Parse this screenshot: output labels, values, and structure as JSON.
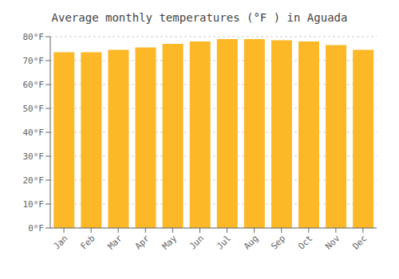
{
  "chart_data": {
    "type": "bar",
    "title": "Average monthly temperatures (°F ) in Aguada",
    "categories": [
      "Jan",
      "Feb",
      "Mar",
      "Apr",
      "May",
      "Jun",
      "Jul",
      "Aug",
      "Sep",
      "Oct",
      "Nov",
      "Dec"
    ],
    "values": [
      73.5,
      73.5,
      74.5,
      75.5,
      77.0,
      78.0,
      79.0,
      79.0,
      78.5,
      78.0,
      76.5,
      74.5
    ],
    "color": "#FDB827",
    "ylim": [
      0,
      80
    ],
    "yticks": [
      {
        "value": 0,
        "label": "0°F"
      },
      {
        "value": 10,
        "label": "10°F"
      },
      {
        "value": 20,
        "label": "20°F"
      },
      {
        "value": 30,
        "label": "30°F"
      },
      {
        "value": 40,
        "label": "40°F"
      },
      {
        "value": 50,
        "label": "50°F"
      },
      {
        "value": 60,
        "label": "60°F"
      },
      {
        "value": 70,
        "label": "70°F"
      },
      {
        "value": 80,
        "label": "80°F"
      }
    ],
    "grid": true
  }
}
